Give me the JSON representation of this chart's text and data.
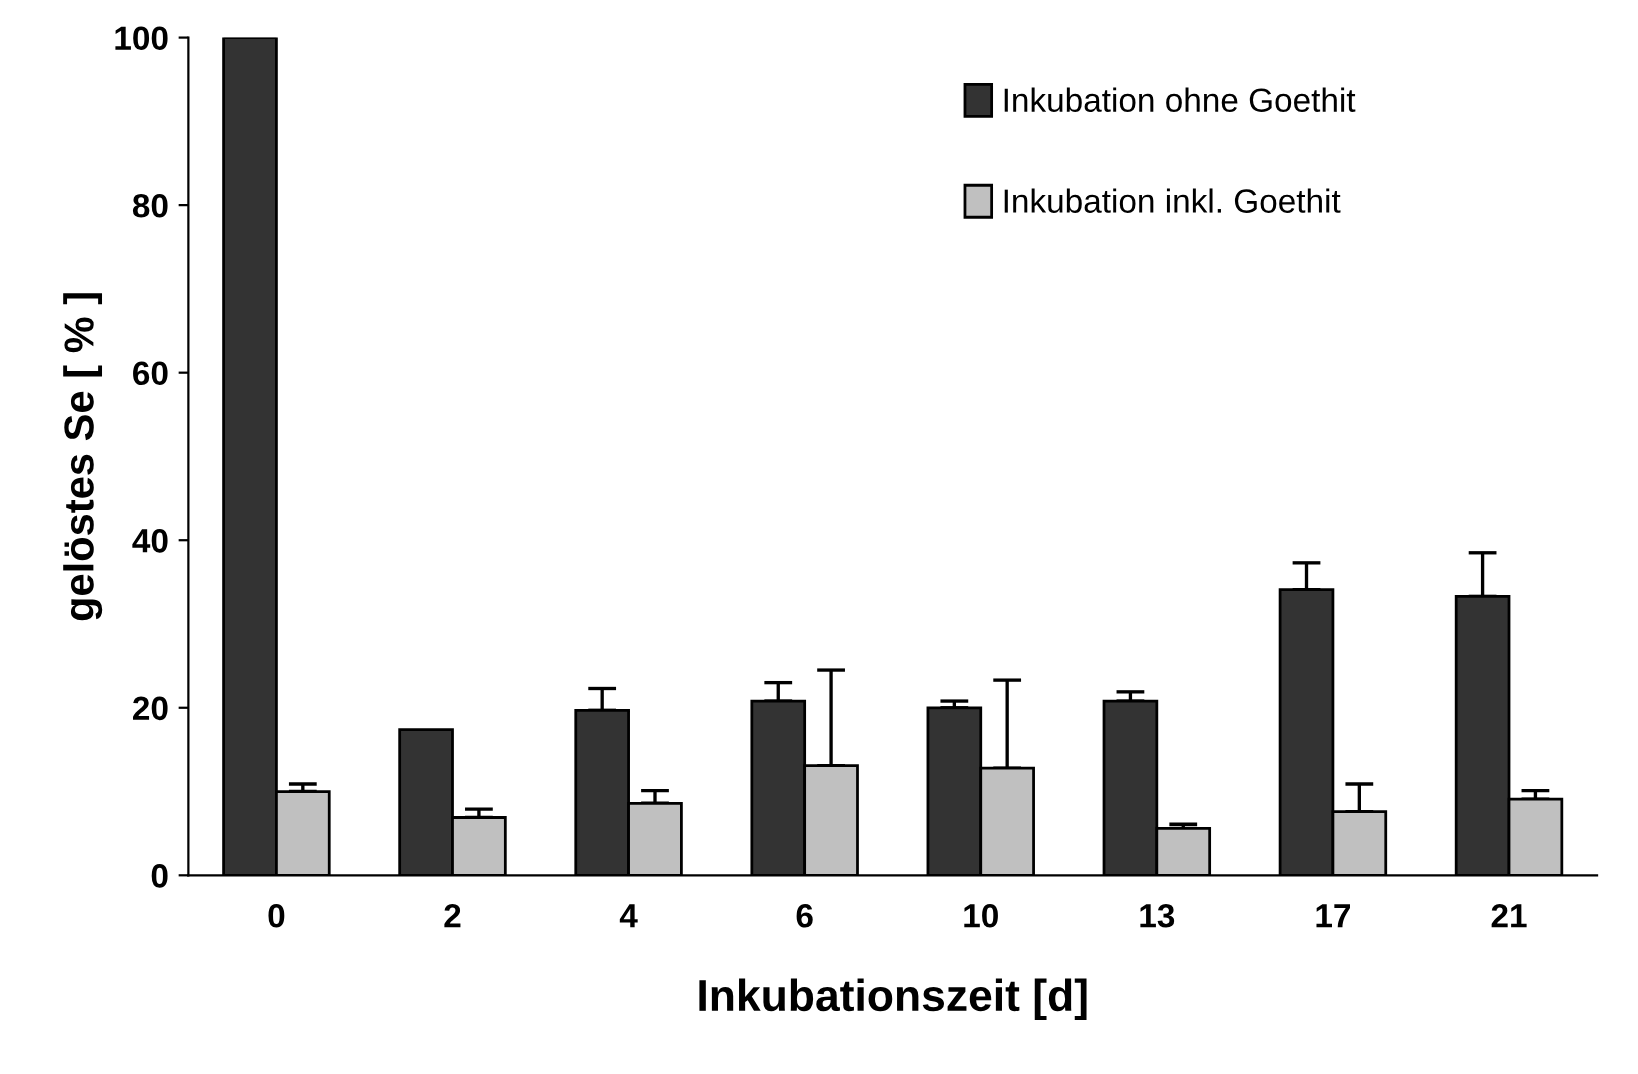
{
  "chart_data": {
    "type": "bar",
    "xlabel": "Inkubationszeit [d]",
    "ylabel": "gelöstes Se [ % ]",
    "categories": [
      "0",
      "2",
      "4",
      "6",
      "10",
      "13",
      "17",
      "21"
    ],
    "series": [
      {
        "name": "Inkubation ohne Goethit",
        "color": "#333333",
        "values": [
          100,
          17.4,
          19.7,
          20.8,
          20.0,
          20.8,
          34.1,
          33.3
        ],
        "errors": [
          null,
          null,
          [
            19.7,
            22.3
          ],
          [
            20.8,
            23.0
          ],
          [
            20.0,
            20.8
          ],
          [
            20.8,
            21.9
          ],
          [
            34.1,
            37.3
          ],
          [
            33.3,
            38.5
          ]
        ]
      },
      {
        "name": "Inkubation inkl. Goethit",
        "color": "#c0c0c0",
        "values": [
          10.0,
          6.9,
          8.6,
          13.1,
          12.8,
          5.6,
          7.6,
          9.1
        ],
        "errors": [
          [
            10.0,
            10.9
          ],
          [
            6.9,
            7.9
          ],
          [
            8.6,
            10.1
          ],
          [
            13.1,
            24.5
          ],
          [
            12.8,
            23.3
          ],
          [
            5.6,
            6.1
          ],
          [
            7.6,
            10.9
          ],
          [
            9.1,
            10.1
          ]
        ]
      }
    ],
    "ylim": [
      0,
      100
    ],
    "yticks": [
      0,
      20,
      40,
      60,
      80,
      100
    ],
    "grid": false,
    "legend": "top"
  }
}
